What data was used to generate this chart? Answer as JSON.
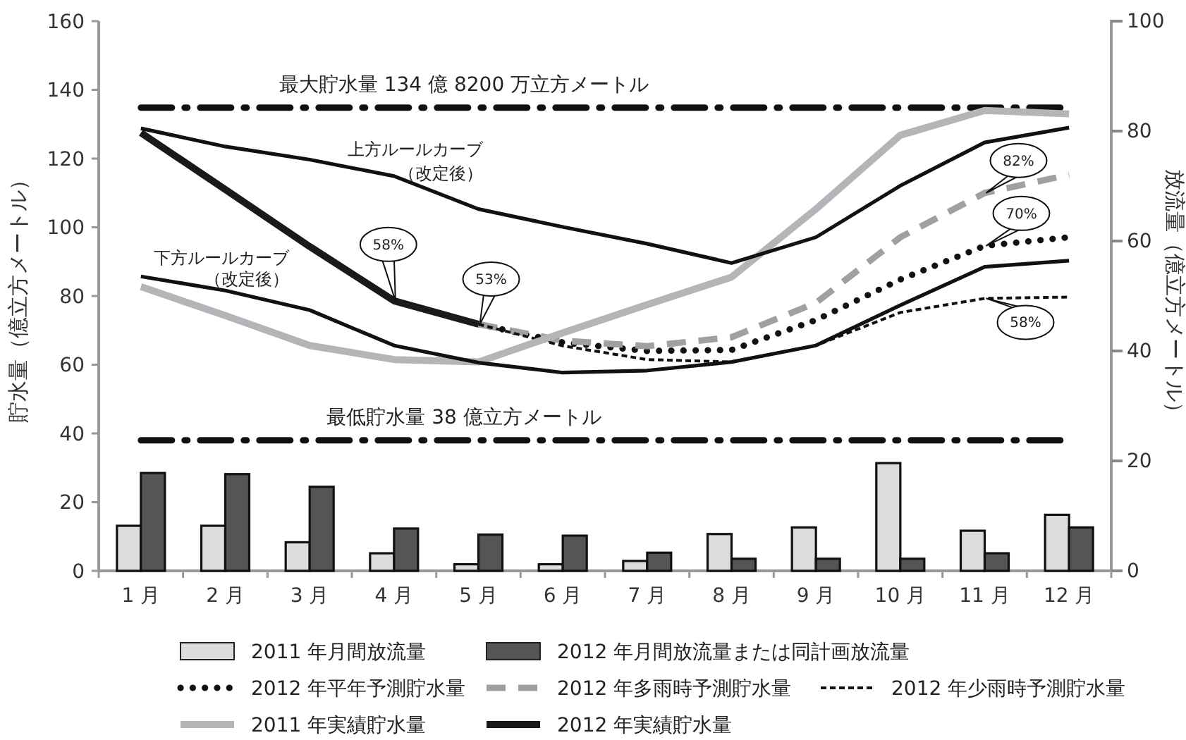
{
  "chart_data": {
    "type": "line",
    "categories": [
      "1 月",
      "2 月",
      "3 月",
      "4 月",
      "5 月",
      "6 月",
      "7 月",
      "8 月",
      "9 月",
      "10 月",
      "11 月",
      "12 月"
    ],
    "ylabel": "貯水量（億立方メートル）",
    "y2label": "放流量（億立方メートル）",
    "ylim": [
      0,
      160
    ],
    "yticks": [
      0,
      20,
      40,
      60,
      80,
      100,
      120,
      140,
      160
    ],
    "y2lim": [
      0,
      100
    ],
    "y2ticks": [
      0,
      20,
      40,
      60,
      80,
      100
    ],
    "legend": "bottom",
    "series": [
      {
        "name": "2011 年月間放流量",
        "type": "bar",
        "axis": "y2",
        "color": "#dcdddf",
        "values": [
          8.2,
          8.2,
          5.2,
          3.2,
          1.2,
          1.2,
          1.8,
          6.7,
          7.9,
          19.6,
          7.3,
          10.2
        ]
      },
      {
        "name": "2012 年月間放流量または同計画放流量",
        "type": "bar",
        "axis": "y2",
        "color": "#555555",
        "values": [
          17.8,
          17.6,
          15.3,
          7.7,
          6.6,
          6.4,
          3.3,
          2.2,
          2.2,
          2.2,
          3.2,
          7.9
        ]
      },
      {
        "name": "2012 年平年予測貯水量",
        "line_style": "dotted",
        "color": "#111111",
        "values": [
          null,
          null,
          null,
          null,
          71.8,
          66.5,
          64,
          64.3,
          73,
          84.8,
          94.6,
          97.1
        ]
      },
      {
        "name": "2012 年多雨時予測貯水量",
        "line_style": "dashed",
        "color": "#a0a0a0",
        "values": [
          null,
          null,
          null,
          null,
          71.8,
          67,
          65.4,
          68,
          78,
          97.1,
          110,
          115.3
        ]
      },
      {
        "name": "2012 年少雨時予測貯水量",
        "line_style": "dashed",
        "color": "#111111",
        "values": [
          null,
          null,
          null,
          null,
          71.8,
          65.5,
          61.5,
          60.8,
          65.6,
          75.2,
          79.3,
          79.7
        ]
      },
      {
        "name": "2011 年実績貯水量",
        "line_style": "solid",
        "color": "#b4b5b8",
        "values": [
          82.7,
          74.3,
          65.6,
          61.5,
          60.8,
          69.3,
          77.5,
          85.5,
          105.3,
          126.8,
          134,
          133
        ]
      },
      {
        "name": "2012 年実績貯水量",
        "line_style": "solid",
        "color": "#1a1a1a",
        "values": [
          127.5,
          111,
          94.4,
          78.6,
          71.8,
          null,
          null,
          null,
          null,
          null,
          null,
          null
        ]
      },
      {
        "line_style": "solid",
        "color": "#111111",
        "values": [
          128.8,
          123.5,
          119.7,
          114.9,
          105.3,
          100.1,
          95.2,
          89.6,
          97.1,
          112.1,
          124.7,
          129
        ]
      },
      {
        "line_style": "solid",
        "color": "#111111",
        "values": [
          85.7,
          81.6,
          75.9,
          65.6,
          60.6,
          57.7,
          58.3,
          60.8,
          65.6,
          77.3,
          88.5,
          90.3
        ]
      }
    ],
    "ref_lines": [
      {
        "axis": "y",
        "value": 134.82,
        "label": "最大貯水量 134 億 8200 万立方メートル",
        "color": "#111111",
        "line_style": "dashdot"
      },
      {
        "axis": "y",
        "value": 38,
        "label": "最低貯水量 38 億立方メートル",
        "color": "#111111",
        "line_style": "dashdot"
      }
    ],
    "annotations": [
      {
        "text": "上方ルールカーブ",
        "x": "4 月",
        "y": 114.9
      },
      {
        "text": "（改定後）",
        "x": "4 月",
        "y": 114.9
      },
      {
        "text": "下方ルールカーブ",
        "x": "2 月",
        "y": 81.6
      },
      {
        "text": "（改定後）",
        "x": "2 月",
        "y": 81.6
      },
      {
        "text": "58%",
        "x": "4 月",
        "y": 78.6
      },
      {
        "text": "53%",
        "x": "5 月",
        "y": 71.8
      },
      {
        "text": "82%",
        "x": "11 月",
        "y": 110
      },
      {
        "text": "70%",
        "x": "11 月",
        "y": 94.6
      },
      {
        "text": "58%",
        "x": "11 月",
        "y": 79.3
      }
    ]
  }
}
